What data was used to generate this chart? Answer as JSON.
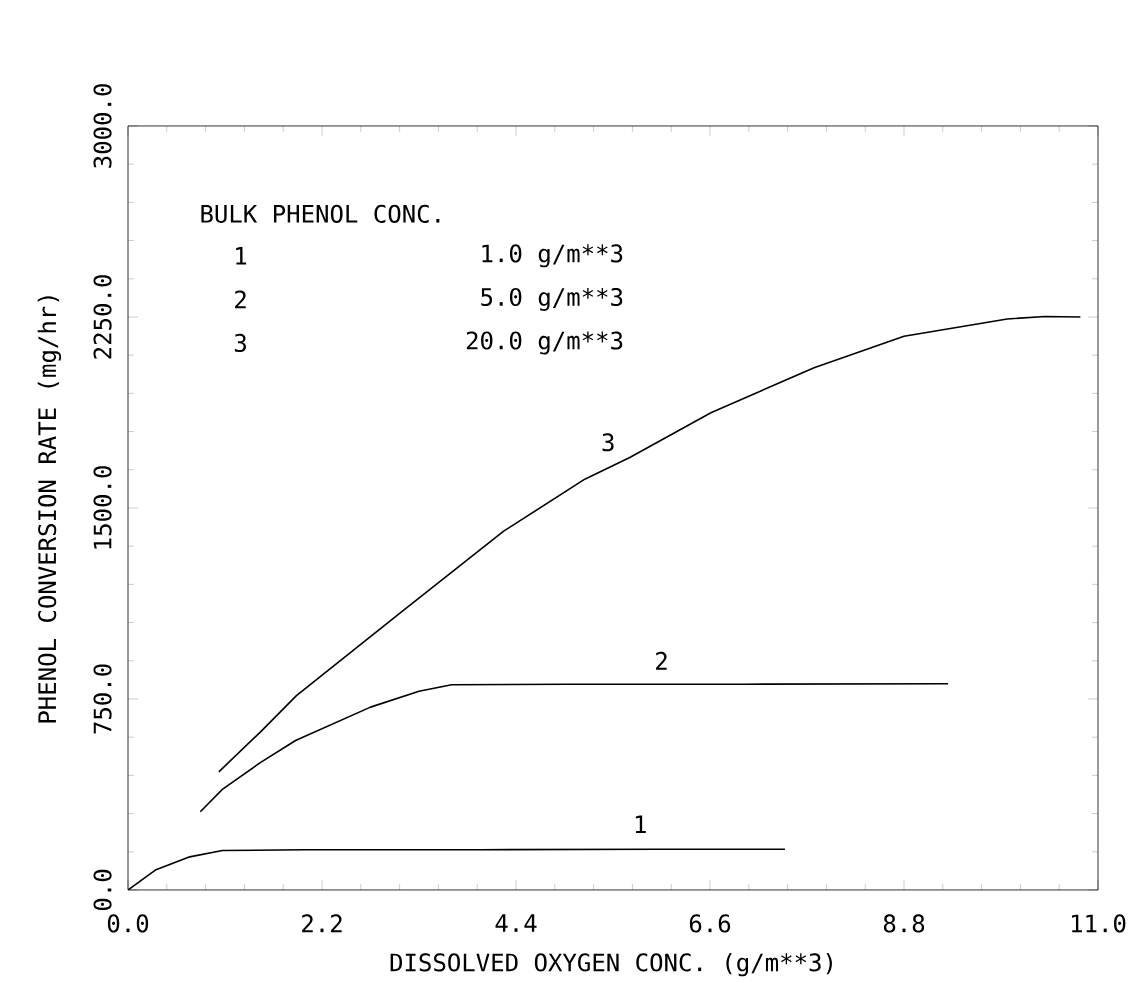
{
  "chart_data": {
    "type": "line",
    "xlabel": "DISSOLVED OXYGEN CONC.  (g/m**3)",
    "ylabel": "PHENOL CONVERSION RATE  (mg/hr)",
    "xlim": [
      0,
      11
    ],
    "ylim": [
      0,
      3000
    ],
    "xticks": [
      {
        "value": 0,
        "label": "0.0"
      },
      {
        "value": 2.2,
        "label": "2.2"
      },
      {
        "value": 4.4,
        "label": "4.4"
      },
      {
        "value": 6.6,
        "label": "6.6"
      },
      {
        "value": 8.8,
        "label": "8.8"
      },
      {
        "value": 11,
        "label": "11.0"
      }
    ],
    "yticks": [
      {
        "value": 0,
        "label": "0.0"
      },
      {
        "value": 750,
        "label": "750.0"
      },
      {
        "value": 1500,
        "label": "1500.0"
      },
      {
        "value": 2250,
        "label": "2250.0"
      },
      {
        "value": 3000,
        "label": "3000.0"
      }
    ],
    "marker": "none",
    "line_style": "solid",
    "series": [
      {
        "color": "#000000",
        "x": [
          0,
          0.31,
          0.7,
          1.07,
          2.0,
          4.0,
          6.0,
          7.45
        ],
        "values": [
          0,
          78,
          130,
          155,
          158,
          158,
          160,
          160
        ]
      },
      {
        "color": "#000000",
        "x": [
          0.82,
          1.07,
          1.5,
          1.9,
          2.75,
          3.3,
          3.67,
          5.0,
          7.0,
          9.3
        ],
        "values": [
          307,
          395,
          500,
          587,
          718,
          780,
          806,
          808,
          808,
          810
        ]
      },
      {
        "color": "#000000",
        "x": [
          1.03,
          1.5,
          1.91,
          3.08,
          4.26,
          5.18,
          5.69,
          6.61,
          7.78,
          8.8,
          9.97,
          10.4,
          10.8
        ],
        "values": [
          464,
          620,
          763,
          1086,
          1409,
          1613,
          1698,
          1874,
          2051,
          2174,
          2242,
          2252,
          2250
        ]
      }
    ],
    "annotations": [
      "1",
      "2",
      "3",
      "BULK PHENOL CONC.",
      "1",
      "1.0 g/m**3",
      "2",
      "5.0 g/m**3",
      "3",
      "20.0 g/m**3"
    ]
  }
}
